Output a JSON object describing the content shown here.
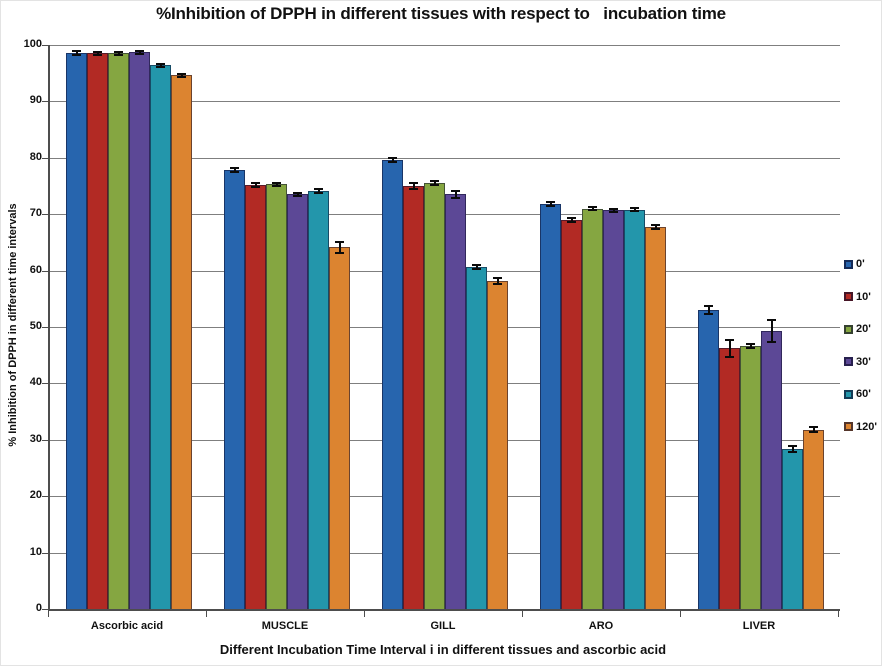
{
  "chart_data": {
    "type": "bar",
    "title": "%Inhibition of DPPH in different tissues with respect to   incubation time",
    "xlabel": "Different Incubation Time Interval i in different tissues and ascorbic acid",
    "ylabel": "% Inhibition of DPPH in different time intervals",
    "ylim": [
      0,
      100
    ],
    "yticks": [
      0,
      10,
      20,
      30,
      40,
      50,
      60,
      70,
      80,
      90,
      100
    ],
    "grid": true,
    "legend_position": "right",
    "error_bars": true,
    "categories": [
      "Ascorbic acid",
      "MUSCLE",
      "GILL",
      "ARO",
      "LIVER"
    ],
    "series": [
      {
        "name": "0'",
        "color": "#2765AE",
        "values": [
          98.6,
          77.8,
          79.6,
          71.8,
          53.0
        ],
        "errors": [
          0.3,
          0.4,
          0.4,
          0.3,
          0.7
        ]
      },
      {
        "name": "10'",
        "color": "#B22A24",
        "values": [
          98.5,
          75.2,
          75.0,
          69.0,
          46.2
        ],
        "errors": [
          0.2,
          0.3,
          0.5,
          0.4,
          1.5
        ]
      },
      {
        "name": "20'",
        "color": "#85A641",
        "values": [
          98.5,
          75.3,
          75.5,
          71.0,
          46.6
        ],
        "errors": [
          0.2,
          0.3,
          0.3,
          0.3,
          0.4
        ]
      },
      {
        "name": "30'",
        "color": "#5C4896",
        "values": [
          98.7,
          73.5,
          73.5,
          70.7,
          49.3
        ],
        "errors": [
          0.3,
          0.3,
          0.7,
          0.3,
          2.0
        ]
      },
      {
        "name": "60'",
        "color": "#2396AB",
        "values": [
          96.4,
          74.1,
          60.6,
          70.8,
          28.4
        ],
        "errors": [
          0.3,
          0.4,
          0.4,
          0.3,
          0.5
        ]
      },
      {
        "name": "120'",
        "color": "#DC8430",
        "values": [
          94.6,
          64.1,
          58.2,
          67.7,
          31.8
        ],
        "errors": [
          0.3,
          1.0,
          0.5,
          0.3,
          0.4
        ]
      }
    ]
  }
}
